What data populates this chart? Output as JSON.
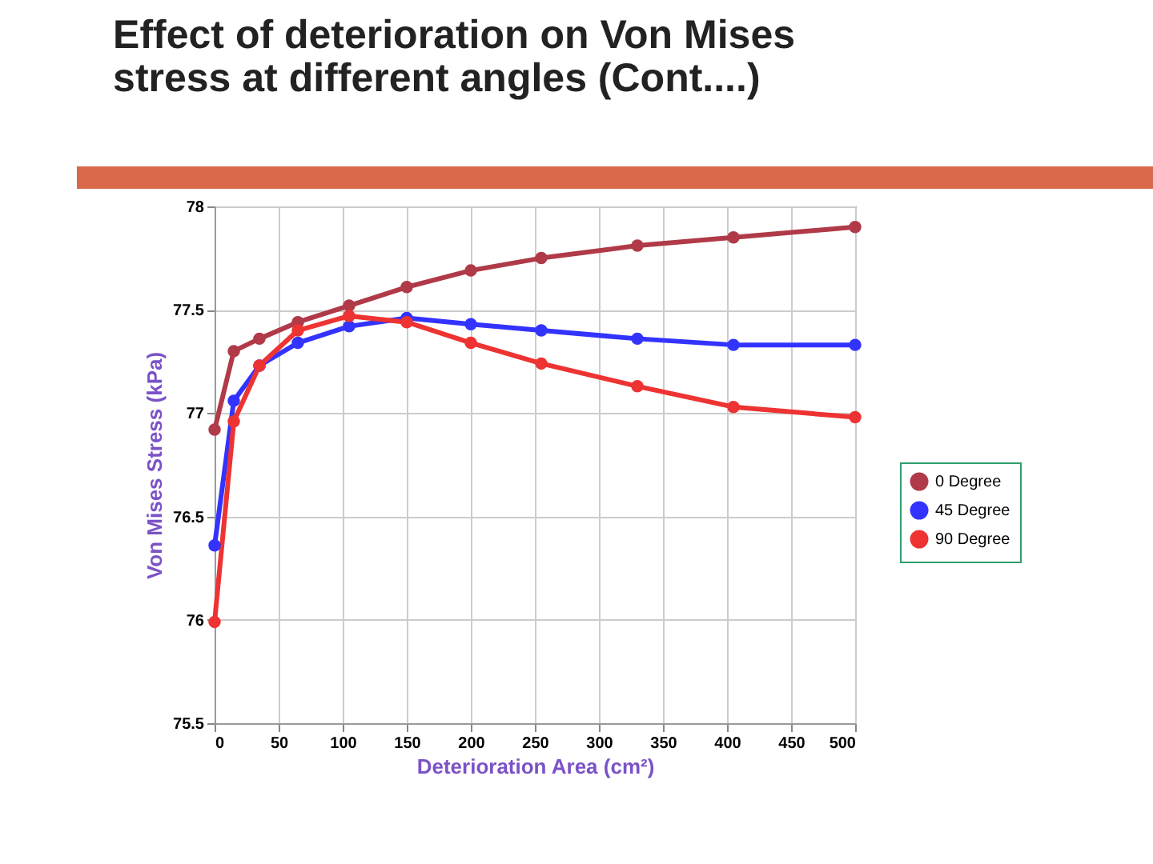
{
  "chart_data": {
    "type": "line",
    "title": [
      "Effect of deterioration on Von Mises",
      "stress at different angles (Cont....)"
    ],
    "xlabel": "Deterioration Area (cm²)",
    "ylabel": "Von Mises Stress (kPa)",
    "x": [
      0,
      15,
      35,
      65,
      105,
      150,
      200,
      255,
      330,
      405,
      500
    ],
    "series": [
      {
        "name": "0 Degree",
        "color": "#b03a48",
        "values": [
          76.92,
          77.3,
          77.36,
          77.44,
          77.52,
          77.61,
          77.69,
          77.75,
          77.81,
          77.85,
          77.9
        ]
      },
      {
        "name": "45 Degree",
        "color": "#3333ff",
        "values": [
          76.36,
          77.06,
          77.23,
          77.34,
          77.42,
          77.46,
          77.43,
          77.4,
          77.36,
          77.33,
          77.33
        ]
      },
      {
        "name": "90 Degree",
        "color": "#ee3333",
        "values": [
          75.99,
          76.96,
          77.23,
          77.4,
          77.47,
          77.44,
          77.34,
          77.24,
          77.13,
          77.03,
          76.98
        ]
      }
    ],
    "xlim": [
      0,
      500
    ],
    "xticks": [
      0,
      50,
      100,
      150,
      200,
      250,
      300,
      350,
      400,
      450,
      500
    ],
    "ylim": [
      75.5,
      78
    ],
    "yticks": [
      75.5,
      76,
      76.5,
      77,
      77.5,
      78
    ],
    "grid": true,
    "legend": "right",
    "marker": "circle",
    "line_style": "solid"
  }
}
